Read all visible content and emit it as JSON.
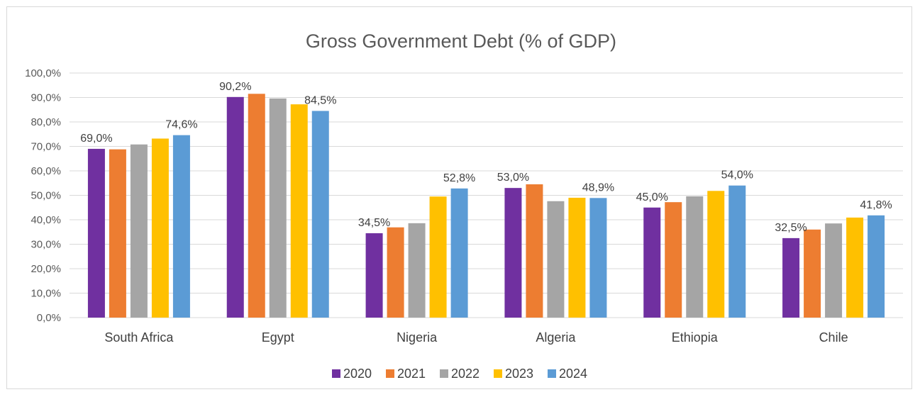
{
  "chart_data": {
    "type": "bar",
    "title": "Gross Government Debt (% of GDP)",
    "categories": [
      "South Africa",
      "Egypt",
      "Nigeria",
      "Algeria",
      "Ethiopia",
      "Chile"
    ],
    "series": [
      {
        "name": "2020",
        "color": "#7030a0",
        "values": [
          69.0,
          90.2,
          34.5,
          53.0,
          45.0,
          32.5
        ]
      },
      {
        "name": "2021",
        "color": "#ed7d31",
        "values": [
          68.8,
          91.5,
          36.9,
          54.5,
          47.2,
          36.0
        ]
      },
      {
        "name": "2022",
        "color": "#a5a5a5",
        "values": [
          70.8,
          89.6,
          38.6,
          47.6,
          49.6,
          38.5
        ]
      },
      {
        "name": "2023",
        "color": "#ffc000",
        "values": [
          73.2,
          87.2,
          49.5,
          49.0,
          51.8,
          40.9
        ]
      },
      {
        "name": "2024",
        "color": "#5b9bd5",
        "values": [
          74.6,
          84.5,
          52.8,
          48.9,
          54.0,
          41.8
        ]
      }
    ],
    "data_labels": [
      {
        "category": 0,
        "series": 0,
        "text": "69,0%"
      },
      {
        "category": 0,
        "series": 4,
        "text": "74,6%"
      },
      {
        "category": 1,
        "series": 0,
        "text": "90,2%"
      },
      {
        "category": 1,
        "series": 4,
        "text": "84,5%"
      },
      {
        "category": 2,
        "series": 0,
        "text": "34,5%"
      },
      {
        "category": 2,
        "series": 4,
        "text": "52,8%"
      },
      {
        "category": 3,
        "series": 0,
        "text": "53,0%"
      },
      {
        "category": 3,
        "series": 4,
        "text": "48,9%"
      },
      {
        "category": 4,
        "series": 0,
        "text": "45,0%"
      },
      {
        "category": 4,
        "series": 4,
        "text": "54,0%"
      },
      {
        "category": 5,
        "series": 0,
        "text": "32,5%"
      },
      {
        "category": 5,
        "series": 4,
        "text": "41,8%"
      }
    ],
    "y_ticks": [
      "0,0%",
      "10,0%",
      "20,0%",
      "30,0%",
      "40,0%",
      "50,0%",
      "60,0%",
      "70,0%",
      "80,0%",
      "90,0%",
      "100,0%"
    ],
    "ylim": [
      0,
      100
    ],
    "grid": true,
    "legend_position": "bottom"
  }
}
